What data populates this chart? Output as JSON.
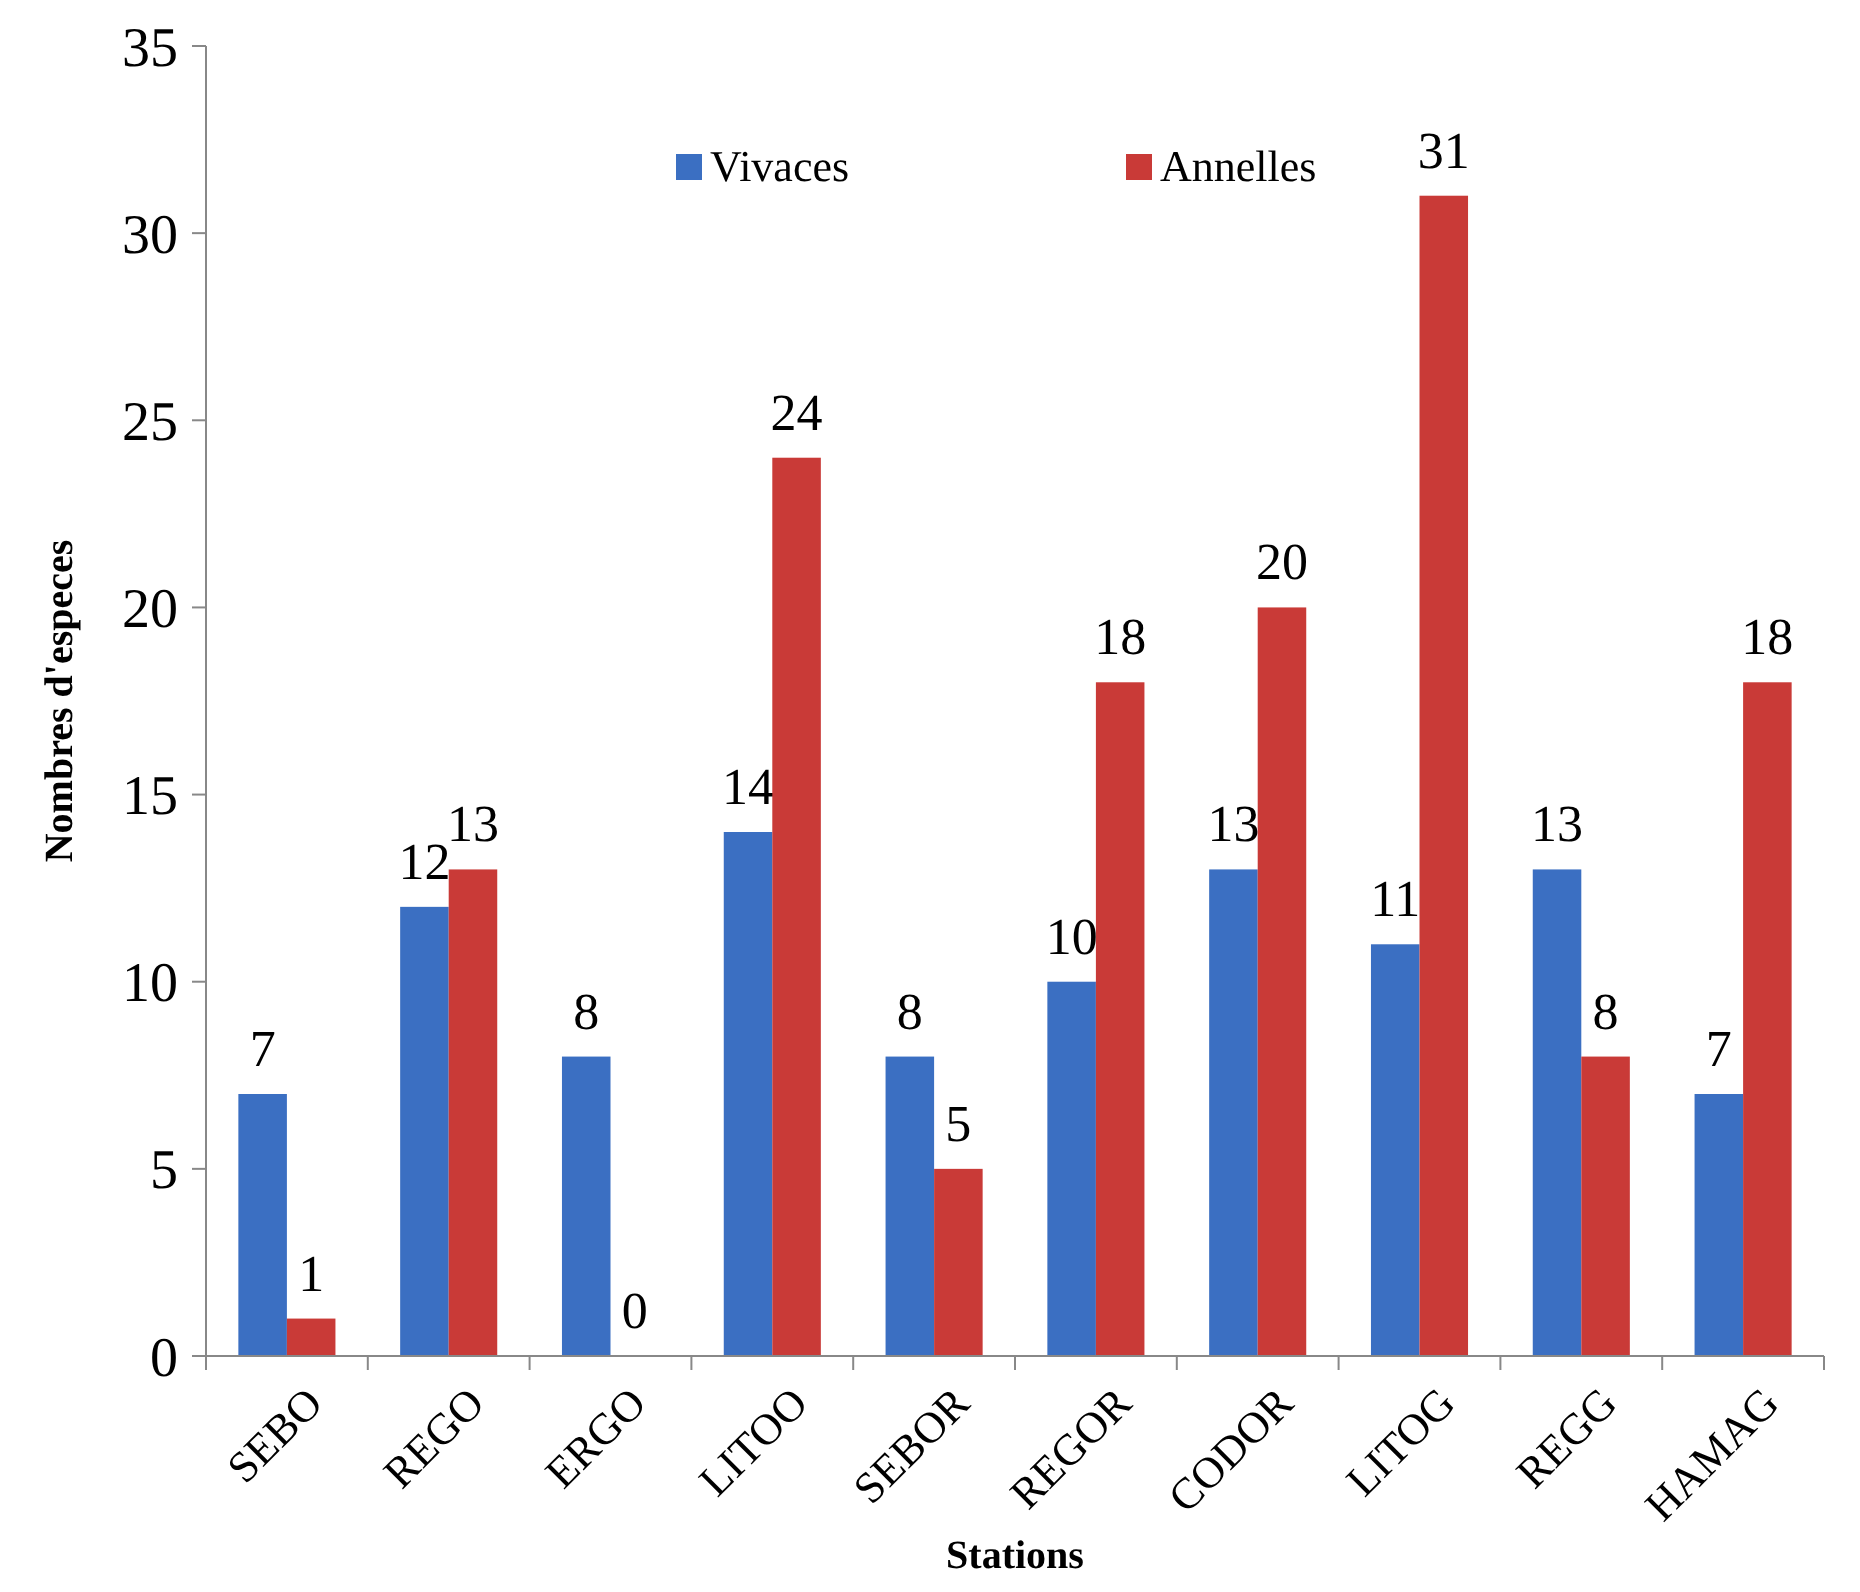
{
  "chart_data": {
    "type": "bar",
    "xlabel": "Stations",
    "ylabel": "Nombres d'especes",
    "categories": [
      "SEBO",
      "REGO",
      "ERGO",
      "LITOO",
      "SEBOR",
      "REGOR",
      "CODOR",
      "LITOG",
      "REGG",
      "HAMAG"
    ],
    "series": [
      {
        "name": "Vivaces",
        "color": "#3b6fc2",
        "values": [
          7,
          12,
          8,
          14,
          8,
          10,
          13,
          11,
          13,
          7
        ]
      },
      {
        "name": "Annelles",
        "color": "#c93a37",
        "values": [
          1,
          13,
          0,
          24,
          5,
          18,
          20,
          31,
          8,
          18
        ]
      }
    ],
    "ylim": [
      0,
      35
    ],
    "yticks": [
      0,
      5,
      10,
      15,
      20,
      25,
      30,
      35
    ],
    "grid": false,
    "legend": "top",
    "data_labels": true
  }
}
